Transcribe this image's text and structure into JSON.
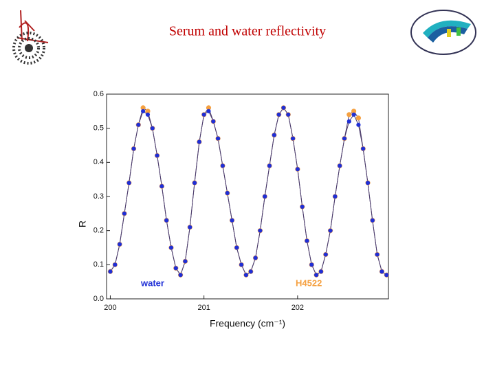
{
  "chart_data": {
    "type": "line",
    "title": "Serum and water reflectivity",
    "x_label": "Frequency (cm⁻¹)",
    "y_label": "R",
    "x": [
      200.0,
      200.05,
      200.1,
      200.15,
      200.2,
      200.25,
      200.3,
      200.35,
      200.4,
      200.45,
      200.5,
      200.55,
      200.6,
      200.65,
      200.7,
      200.75,
      200.8,
      200.85,
      200.9,
      200.95,
      201.0,
      201.05,
      201.1,
      201.15,
      201.2,
      201.25,
      201.3,
      201.35,
      201.4,
      201.45,
      201.5,
      201.55,
      201.6,
      201.65,
      201.7,
      201.75,
      201.8,
      201.85,
      201.9,
      201.95,
      202.0,
      202.05,
      202.1,
      202.15,
      202.2,
      202.25,
      202.3,
      202.35,
      202.4,
      202.45,
      202.5,
      202.55,
      202.6,
      202.65,
      202.7,
      202.75,
      202.8,
      202.85,
      202.9,
      202.95
    ],
    "series": [
      {
        "name": "H4522",
        "color": "#f5a040",
        "values": [
          0.08,
          0.1,
          0.16,
          0.25,
          0.34,
          0.44,
          0.51,
          0.56,
          0.55,
          0.5,
          0.42,
          0.33,
          0.23,
          0.15,
          0.09,
          0.07,
          0.11,
          0.21,
          0.34,
          0.46,
          0.54,
          0.56,
          0.52,
          0.47,
          0.39,
          0.31,
          0.23,
          0.15,
          0.1,
          0.07,
          0.08,
          0.12,
          0.2,
          0.3,
          0.39,
          0.48,
          0.54,
          0.56,
          0.54,
          0.47,
          0.38,
          0.27,
          0.17,
          0.1,
          0.07,
          0.08,
          0.13,
          0.2,
          0.3,
          0.39,
          0.47,
          0.54,
          0.55,
          0.53,
          0.44,
          0.34,
          0.23,
          0.13,
          0.08,
          0.07
        ]
      },
      {
        "name": "water",
        "color": "#1f2fd6",
        "values": [
          0.08,
          0.1,
          0.16,
          0.25,
          0.34,
          0.44,
          0.51,
          0.55,
          0.54,
          0.5,
          0.42,
          0.33,
          0.23,
          0.15,
          0.09,
          0.07,
          0.11,
          0.21,
          0.34,
          0.46,
          0.54,
          0.55,
          0.52,
          0.47,
          0.39,
          0.31,
          0.23,
          0.15,
          0.1,
          0.07,
          0.08,
          0.12,
          0.2,
          0.3,
          0.39,
          0.48,
          0.54,
          0.56,
          0.54,
          0.47,
          0.38,
          0.27,
          0.17,
          0.1,
          0.07,
          0.08,
          0.13,
          0.2,
          0.3,
          0.39,
          0.47,
          0.52,
          0.54,
          0.51,
          0.44,
          0.34,
          0.23,
          0.13,
          0.08,
          0.07
        ]
      }
    ],
    "line_color": "#4a3a6a",
    "xlim": [
      199.96,
      202.97
    ],
    "ylim": [
      0,
      0.6
    ],
    "xticks": [
      200,
      201,
      202
    ],
    "yticks": [
      {
        "value": 0,
        "label": "0.0"
      },
      0.1,
      0.2,
      0.3,
      0.4,
      0.5,
      0.6
    ]
  }
}
